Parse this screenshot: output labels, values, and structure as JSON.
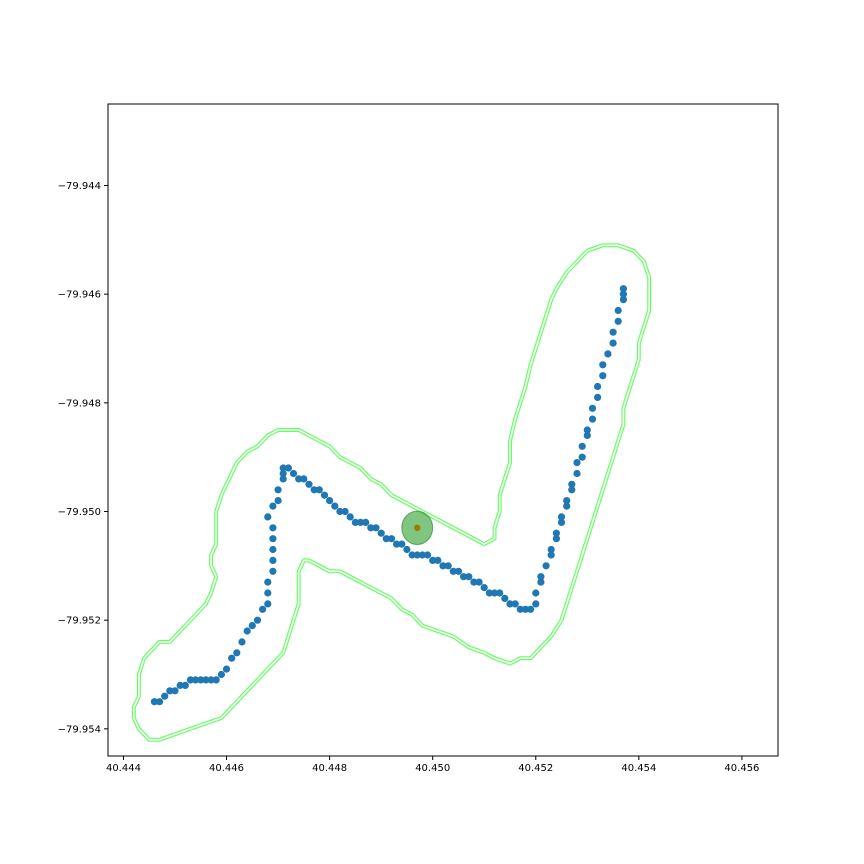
{
  "chart_data": {
    "type": "scatter",
    "title": "",
    "xlabel": "",
    "ylabel": "",
    "xlim": [
      40.4437,
      40.4567
    ],
    "ylim": [
      -79.9545,
      -79.9425
    ],
    "xticks": [
      40.444,
      40.446,
      40.448,
      40.45,
      40.452,
      40.454,
      40.456
    ],
    "xtick_labels": [
      "40.444",
      "40.446",
      "40.448",
      "40.450",
      "40.452",
      "40.454",
      "40.456"
    ],
    "yticks": [
      -79.944,
      -79.946,
      -79.948,
      -79.95,
      -79.952,
      -79.954
    ],
    "ytick_labels": [
      "−79.944",
      "−79.946",
      "−79.948",
      "−79.950",
      "−79.952",
      "−79.954"
    ],
    "grid": false,
    "legend": "none",
    "path_points": {
      "color": "#1f77b4",
      "points": [
        [
          40.4446,
          -79.9535
        ],
        [
          40.4447,
          -79.9535
        ],
        [
          40.4448,
          -79.9534
        ],
        [
          40.4449,
          -79.9533
        ],
        [
          40.445,
          -79.9533
        ],
        [
          40.4451,
          -79.9532
        ],
        [
          40.4452,
          -79.9532
        ],
        [
          40.4453,
          -79.9531
        ],
        [
          40.4454,
          -79.9531
        ],
        [
          40.4455,
          -79.9531
        ],
        [
          40.4456,
          -79.9531
        ],
        [
          40.4457,
          -79.9531
        ],
        [
          40.4458,
          -79.9531
        ],
        [
          40.4459,
          -79.953
        ],
        [
          40.446,
          -79.9529
        ],
        [
          40.4461,
          -79.9527
        ],
        [
          40.4462,
          -79.9526
        ],
        [
          40.4463,
          -79.9524
        ],
        [
          40.4464,
          -79.9522
        ],
        [
          40.4465,
          -79.9521
        ],
        [
          40.4466,
          -79.952
        ],
        [
          40.4467,
          -79.9518
        ],
        [
          40.4468,
          -79.9517
        ],
        [
          40.4468,
          -79.9515
        ],
        [
          40.4468,
          -79.9513
        ],
        [
          40.4469,
          -79.9511
        ],
        [
          40.4469,
          -79.9509
        ],
        [
          40.4469,
          -79.9507
        ],
        [
          40.4469,
          -79.9505
        ],
        [
          40.4469,
          -79.9503
        ],
        [
          40.4468,
          -79.9501
        ],
        [
          40.4469,
          -79.9499
        ],
        [
          40.447,
          -79.9498
        ],
        [
          40.447,
          -79.9496
        ],
        [
          40.4471,
          -79.9494
        ],
        [
          40.4471,
          -79.9493
        ],
        [
          40.4471,
          -79.9492
        ],
        [
          40.4472,
          -79.9492
        ],
        [
          40.4473,
          -79.9493
        ],
        [
          40.4474,
          -79.9494
        ],
        [
          40.4475,
          -79.9494
        ],
        [
          40.4476,
          -79.9495
        ],
        [
          40.4477,
          -79.9496
        ],
        [
          40.4478,
          -79.9496
        ],
        [
          40.4479,
          -79.9497
        ],
        [
          40.448,
          -79.9498
        ],
        [
          40.4481,
          -79.9499
        ],
        [
          40.4482,
          -79.95
        ],
        [
          40.4483,
          -79.95
        ],
        [
          40.4484,
          -79.9501
        ],
        [
          40.4485,
          -79.9502
        ],
        [
          40.4486,
          -79.9502
        ],
        [
          40.4487,
          -79.9502
        ],
        [
          40.4488,
          -79.9503
        ],
        [
          40.4489,
          -79.9503
        ],
        [
          40.449,
          -79.9504
        ],
        [
          40.4491,
          -79.9505
        ],
        [
          40.4492,
          -79.9505
        ],
        [
          40.4493,
          -79.9506
        ],
        [
          40.4494,
          -79.9506
        ],
        [
          40.4495,
          -79.9507
        ],
        [
          40.4496,
          -79.9508
        ],
        [
          40.4497,
          -79.9508
        ],
        [
          40.4498,
          -79.9508
        ],
        [
          40.4499,
          -79.9508
        ],
        [
          40.45,
          -79.9509
        ],
        [
          40.4501,
          -79.9509
        ],
        [
          40.4502,
          -79.951
        ],
        [
          40.4503,
          -79.951
        ],
        [
          40.4504,
          -79.9511
        ],
        [
          40.4505,
          -79.9511
        ],
        [
          40.4506,
          -79.9512
        ],
        [
          40.4507,
          -79.9512
        ],
        [
          40.4508,
          -79.9513
        ],
        [
          40.4509,
          -79.9513
        ],
        [
          40.451,
          -79.9514
        ],
        [
          40.4511,
          -79.9515
        ],
        [
          40.4512,
          -79.9515
        ],
        [
          40.4513,
          -79.9515
        ],
        [
          40.4514,
          -79.9516
        ],
        [
          40.4515,
          -79.9517
        ],
        [
          40.4516,
          -79.9517
        ],
        [
          40.4517,
          -79.9518
        ],
        [
          40.4518,
          -79.9518
        ],
        [
          40.4519,
          -79.9518
        ],
        [
          40.452,
          -79.9517
        ],
        [
          40.452,
          -79.9515
        ],
        [
          40.4521,
          -79.9513
        ],
        [
          40.4521,
          -79.9512
        ],
        [
          40.4522,
          -79.951
        ],
        [
          40.4523,
          -79.9508
        ],
        [
          40.4523,
          -79.9507
        ],
        [
          40.4524,
          -79.9505
        ],
        [
          40.4524,
          -79.9504
        ],
        [
          40.4525,
          -79.9502
        ],
        [
          40.4525,
          -79.9501
        ],
        [
          40.4526,
          -79.9499
        ],
        [
          40.4526,
          -79.9498
        ],
        [
          40.4527,
          -79.9496
        ],
        [
          40.4527,
          -79.9495
        ],
        [
          40.4528,
          -79.9493
        ],
        [
          40.4528,
          -79.9491
        ],
        [
          40.4529,
          -79.949
        ],
        [
          40.4529,
          -79.9488
        ],
        [
          40.453,
          -79.9486
        ],
        [
          40.453,
          -79.9485
        ],
        [
          40.4531,
          -79.9483
        ],
        [
          40.4531,
          -79.9481
        ],
        [
          40.4532,
          -79.9479
        ],
        [
          40.4532,
          -79.9477
        ],
        [
          40.4533,
          -79.9475
        ],
        [
          40.4533,
          -79.9473
        ],
        [
          40.4534,
          -79.9471
        ],
        [
          40.4535,
          -79.9469
        ],
        [
          40.4535,
          -79.9467
        ],
        [
          40.4536,
          -79.9465
        ],
        [
          40.4536,
          -79.9463
        ],
        [
          40.4537,
          -79.9461
        ],
        [
          40.4537,
          -79.946
        ],
        [
          40.4537,
          -79.9459
        ]
      ]
    },
    "corridor": {
      "color": "#66ff66",
      "outline": [
        [
          40.4443,
          -79.9534
        ],
        [
          40.4443,
          -79.953
        ],
        [
          40.4444,
          -79.9527
        ],
        [
          40.4445,
          -79.9526
        ],
        [
          40.4447,
          -79.9524
        ],
        [
          40.4449,
          -79.9524
        ],
        [
          40.4451,
          -79.9522
        ],
        [
          40.4453,
          -79.952
        ],
        [
          40.4455,
          -79.9518
        ],
        [
          40.4456,
          -79.9517
        ],
        [
          40.4457,
          -79.9515
        ],
        [
          40.4458,
          -79.9512
        ],
        [
          40.4457,
          -79.951
        ],
        [
          40.4457,
          -79.9508
        ],
        [
          40.4458,
          -79.9506
        ],
        [
          40.4458,
          -79.9503
        ],
        [
          40.4458,
          -79.95
        ],
        [
          40.4459,
          -79.9497
        ],
        [
          40.446,
          -79.9495
        ],
        [
          40.4461,
          -79.9493
        ],
        [
          40.4462,
          -79.9491
        ],
        [
          40.4464,
          -79.9489
        ],
        [
          40.4466,
          -79.9488
        ],
        [
          40.4468,
          -79.9486
        ],
        [
          40.447,
          -79.9485
        ],
        [
          40.4472,
          -79.9485
        ],
        [
          40.4474,
          -79.9485
        ],
        [
          40.4476,
          -79.9486
        ],
        [
          40.4478,
          -79.9487
        ],
        [
          40.448,
          -79.9488
        ],
        [
          40.4482,
          -79.949
        ],
        [
          40.4484,
          -79.9491
        ],
        [
          40.4486,
          -79.9492
        ],
        [
          40.4488,
          -79.9494
        ],
        [
          40.449,
          -79.9495
        ],
        [
          40.4492,
          -79.9497
        ],
        [
          40.4494,
          -79.9498
        ],
        [
          40.4496,
          -79.9499
        ],
        [
          40.4498,
          -79.95
        ],
        [
          40.45,
          -79.9501
        ],
        [
          40.4502,
          -79.9502
        ],
        [
          40.4504,
          -79.9503
        ],
        [
          40.4506,
          -79.9504
        ],
        [
          40.4508,
          -79.9505
        ],
        [
          40.451,
          -79.9506
        ],
        [
          40.4512,
          -79.9505
        ],
        [
          40.4512,
          -79.9503
        ],
        [
          40.4513,
          -79.95
        ],
        [
          40.4513,
          -79.9497
        ],
        [
          40.4514,
          -79.9494
        ],
        [
          40.4515,
          -79.9491
        ],
        [
          40.4515,
          -79.9487
        ],
        [
          40.4516,
          -79.9483
        ],
        [
          40.4517,
          -79.948
        ],
        [
          40.4518,
          -79.9477
        ],
        [
          40.4519,
          -79.9473
        ],
        [
          40.452,
          -79.947
        ],
        [
          40.4521,
          -79.9467
        ],
        [
          40.4522,
          -79.9464
        ],
        [
          40.4523,
          -79.9461
        ],
        [
          40.4524,
          -79.9459
        ],
        [
          40.4526,
          -79.9456
        ],
        [
          40.4528,
          -79.9454
        ],
        [
          40.453,
          -79.9452
        ],
        [
          40.4533,
          -79.9451
        ],
        [
          40.4536,
          -79.9451
        ],
        [
          40.4539,
          -79.9452
        ],
        [
          40.4541,
          -79.9454
        ],
        [
          40.4542,
          -79.9457
        ],
        [
          40.4542,
          -79.946
        ],
        [
          40.4542,
          -79.9463
        ],
        [
          40.4541,
          -79.9466
        ],
        [
          40.454,
          -79.9469
        ],
        [
          40.454,
          -79.9472
        ],
        [
          40.4539,
          -79.9475
        ],
        [
          40.4538,
          -79.9478
        ],
        [
          40.4537,
          -79.9481
        ],
        [
          40.4537,
          -79.9484
        ],
        [
          40.4536,
          -79.9487
        ],
        [
          40.4535,
          -79.949
        ],
        [
          40.4534,
          -79.9493
        ],
        [
          40.4533,
          -79.9496
        ],
        [
          40.4532,
          -79.9499
        ],
        [
          40.4531,
          -79.9502
        ],
        [
          40.453,
          -79.9505
        ],
        [
          40.4529,
          -79.9508
        ],
        [
          40.4528,
          -79.9511
        ],
        [
          40.4527,
          -79.9514
        ],
        [
          40.4526,
          -79.9517
        ],
        [
          40.4525,
          -79.952
        ],
        [
          40.4523,
          -79.9523
        ],
        [
          40.4521,
          -79.9525
        ],
        [
          40.4519,
          -79.9527
        ],
        [
          40.4517,
          -79.9527
        ],
        [
          40.4515,
          -79.9528
        ],
        [
          40.4512,
          -79.9527
        ],
        [
          40.451,
          -79.9526
        ],
        [
          40.4507,
          -79.9525
        ],
        [
          40.4504,
          -79.9523
        ],
        [
          40.4501,
          -79.9522
        ],
        [
          40.4498,
          -79.9521
        ],
        [
          40.4496,
          -79.9519
        ],
        [
          40.4494,
          -79.9518
        ],
        [
          40.4492,
          -79.9516
        ],
        [
          40.449,
          -79.9515
        ],
        [
          40.4488,
          -79.9514
        ],
        [
          40.4486,
          -79.9513
        ],
        [
          40.4484,
          -79.9512
        ],
        [
          40.4482,
          -79.9511
        ],
        [
          40.448,
          -79.9511
        ],
        [
          40.4478,
          -79.951
        ],
        [
          40.4476,
          -79.9509
        ],
        [
          40.4475,
          -79.9509
        ],
        [
          40.4474,
          -79.9511
        ],
        [
          40.4474,
          -79.9514
        ],
        [
          40.4474,
          -79.9517
        ],
        [
          40.4473,
          -79.952
        ],
        [
          40.4472,
          -79.9523
        ],
        [
          40.4471,
          -79.9526
        ],
        [
          40.4469,
          -79.9528
        ],
        [
          40.4467,
          -79.953
        ],
        [
          40.4465,
          -79.9532
        ],
        [
          40.4463,
          -79.9534
        ],
        [
          40.4461,
          -79.9536
        ],
        [
          40.4459,
          -79.9538
        ],
        [
          40.4456,
          -79.9539
        ],
        [
          40.4453,
          -79.954
        ],
        [
          40.445,
          -79.9541
        ],
        [
          40.4447,
          -79.9542
        ],
        [
          40.4445,
          -79.9542
        ],
        [
          40.4443,
          -79.954
        ],
        [
          40.4442,
          -79.9538
        ],
        [
          40.4442,
          -79.9536
        ]
      ]
    },
    "highlight": {
      "center": [
        40.4497,
        -79.9503
      ],
      "radius_x": 0.0003,
      "circle_color": "#2ca02c",
      "center_color": "#9a7d00"
    }
  }
}
